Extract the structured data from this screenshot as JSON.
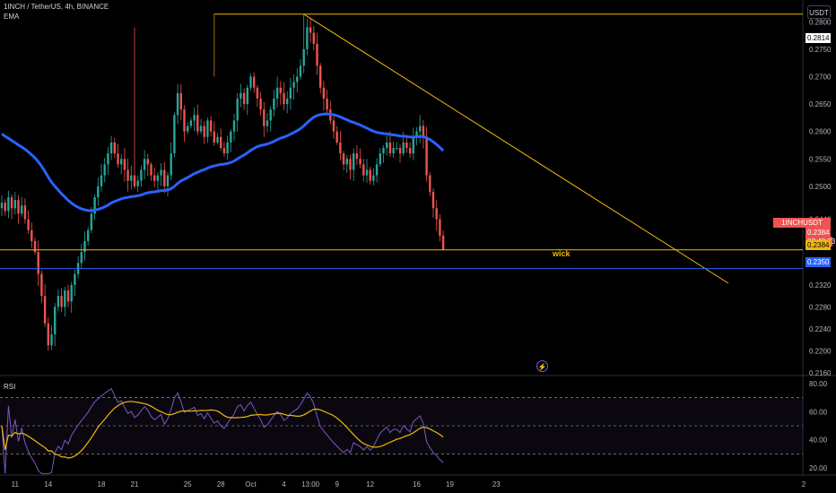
{
  "header": {
    "symbol_line": "1INCH / TetherUS, 4h, BINANCE",
    "indicator": "EMA"
  },
  "unit_button": "USDT",
  "price_axis": {
    "ticks": [
      "0.2800",
      "0.2750",
      "0.2700",
      "0.2650",
      "0.2600",
      "0.2550",
      "0.2500",
      "0.2440",
      "0.2360",
      "0.2320",
      "0.2280",
      "0.2240",
      "0.2200",
      "0.2160"
    ],
    "tick_values": [
      0.28,
      0.275,
      0.27,
      0.265,
      0.26,
      0.255,
      0.25,
      0.244,
      0.236,
      0.232,
      0.228,
      0.224,
      0.22,
      0.216
    ]
  },
  "badges": {
    "high_label": "0.2814",
    "symbol_tag": "1INCHUSDT",
    "last_price": "0.2384",
    "countdown": "02:48:23",
    "support_price": "0.2384",
    "blue_line_price": "0.2350"
  },
  "annotation": "wick",
  "rsi": {
    "title": "RSI",
    "ticks": [
      "80.00",
      "60.00",
      "40.00",
      "20.00"
    ],
    "tick_values": [
      80,
      60,
      40,
      20
    ],
    "bands": [
      70,
      50,
      30
    ]
  },
  "time_axis": {
    "labels": [
      "11",
      "14",
      "18",
      "21",
      "25",
      "28",
      "Oct",
      "4",
      "13:00",
      "9",
      "12",
      "16",
      "19",
      "23",
      "2"
    ],
    "bar_index": [
      4,
      14,
      30,
      40,
      56,
      66,
      75,
      85,
      93,
      101,
      111,
      125,
      135,
      149,
      161
    ]
  },
  "colors": {
    "up": "#26a69a",
    "down": "#ef5350",
    "ema": "#2962ff",
    "trendline": "#f0b90b",
    "support_line": "#f0b90b",
    "blue_level": "#2962ff",
    "rsi_line": "#7e57c2",
    "rsi_ma": "#f0b90b"
  },
  "chart_data": {
    "type": "candlestick",
    "timeframe": "4h",
    "levels": {
      "support": 0.2384,
      "blue_line": 0.235,
      "high": 0.2814
    },
    "closes": [
      0.247,
      0.2455,
      0.248,
      0.246,
      0.2475,
      0.245,
      0.2465,
      0.244,
      0.242,
      0.24,
      0.238,
      0.234,
      0.23,
      0.225,
      0.221,
      0.223,
      0.228,
      0.23,
      0.228,
      0.231,
      0.229,
      0.232,
      0.234,
      0.236,
      0.238,
      0.24,
      0.242,
      0.245,
      0.248,
      0.25,
      0.252,
      0.254,
      0.256,
      0.258,
      0.256,
      0.254,
      0.255,
      0.253,
      0.251,
      0.252,
      0.25,
      0.251,
      0.253,
      0.255,
      0.254,
      0.252,
      0.251,
      0.252,
      0.253,
      0.25,
      0.252,
      0.256,
      0.263,
      0.267,
      0.264,
      0.26,
      0.261,
      0.262,
      0.263,
      0.26,
      0.261,
      0.259,
      0.262,
      0.26,
      0.258,
      0.259,
      0.257,
      0.256,
      0.258,
      0.26,
      0.262,
      0.266,
      0.267,
      0.265,
      0.268,
      0.27,
      0.268,
      0.266,
      0.264,
      0.261,
      0.262,
      0.264,
      0.266,
      0.268,
      0.267,
      0.265,
      0.266,
      0.268,
      0.269,
      0.27,
      0.272,
      0.275,
      0.279,
      0.278,
      0.276,
      0.272,
      0.268,
      0.266,
      0.264,
      0.262,
      0.26,
      0.258,
      0.256,
      0.254,
      0.255,
      0.253,
      0.256,
      0.255,
      0.254,
      0.252,
      0.253,
      0.251,
      0.252,
      0.254,
      0.256,
      0.257,
      0.258,
      0.256,
      0.257,
      0.257,
      0.256,
      0.258,
      0.257,
      0.256,
      0.259,
      0.26,
      0.261,
      0.259,
      0.252,
      0.249,
      0.246,
      0.244,
      0.241,
      0.2384
    ]
  }
}
